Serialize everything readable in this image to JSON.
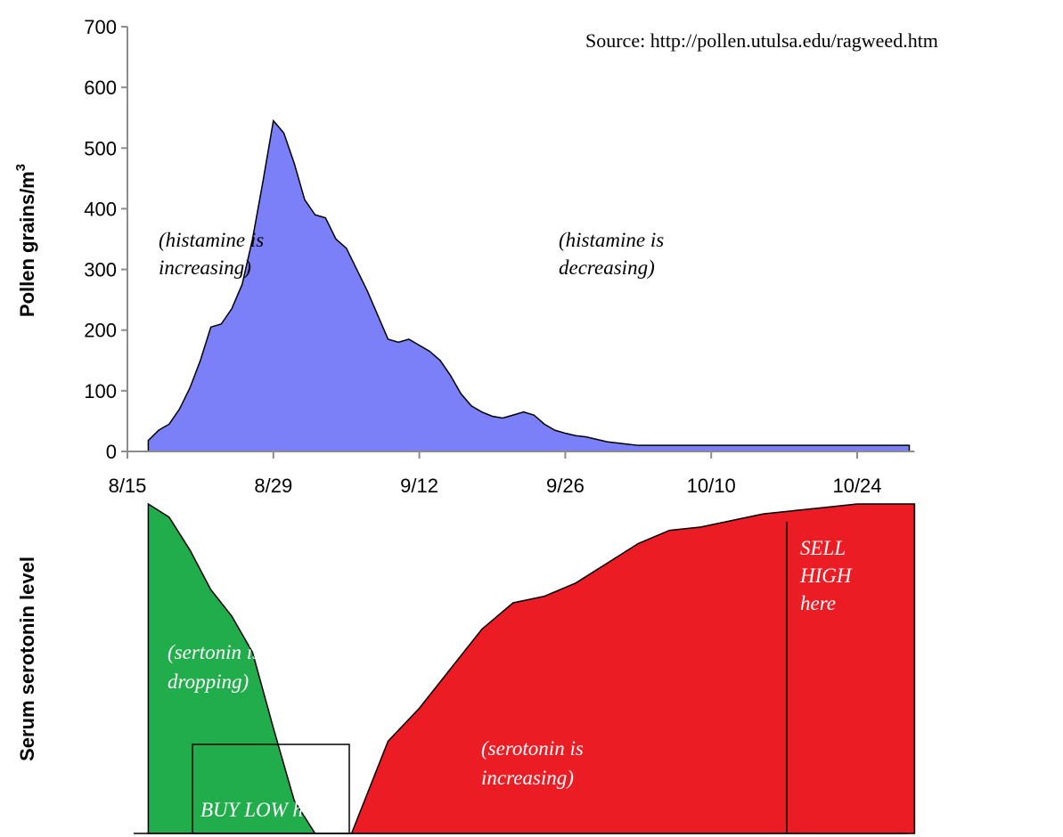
{
  "source": "Source: http://pollen.utulsa.edu/ragweed.htm",
  "colors": {
    "pollen": "#7b7ff8",
    "serotonin_drop": "#22ad4c",
    "serotonin_rise": "#ec1c24",
    "axis": "#8c8c8c"
  },
  "chart_data": [
    {
      "type": "area",
      "ylabel": "Pollen grains/m",
      "ylabel_sup": "3",
      "ylim": [
        0,
        700
      ],
      "yticks": [
        0,
        100,
        200,
        300,
        400,
        500,
        600,
        700
      ],
      "x_tick_labels": [
        "8/15",
        "8/29",
        "9/12",
        "9/26",
        "10/10",
        "10/24"
      ],
      "x_range_days": [
        0,
        75.5
      ],
      "grid": false,
      "series": [
        {
          "x_days": [
            2,
            3,
            4,
            5,
            6,
            7,
            8,
            9,
            10,
            11,
            12,
            13,
            14,
            15,
            16,
            17,
            18,
            19,
            20,
            21,
            22,
            23,
            24,
            25,
            26,
            27,
            28,
            29,
            30,
            31,
            32,
            33,
            34,
            35,
            36,
            37,
            38,
            39,
            40,
            41,
            42,
            43,
            44,
            45,
            46,
            47,
            48,
            49,
            50,
            51,
            52,
            53,
            54,
            55,
            56,
            57,
            58,
            59,
            60,
            61,
            62,
            63,
            64,
            65,
            66,
            67,
            68,
            69,
            70,
            71,
            72,
            73,
            74,
            75
          ],
          "values": [
            18,
            35,
            45,
            70,
            105,
            150,
            205,
            210,
            235,
            275,
            350,
            445,
            545,
            525,
            475,
            415,
            390,
            385,
            350,
            335,
            300,
            265,
            225,
            185,
            180,
            185,
            175,
            165,
            150,
            125,
            95,
            75,
            65,
            58,
            55,
            60,
            65,
            60,
            45,
            35,
            30,
            26,
            24,
            20,
            16,
            14,
            12,
            10,
            10,
            10,
            10,
            10,
            10,
            10,
            10,
            10,
            10,
            10,
            10,
            10,
            10,
            10,
            10,
            10,
            10,
            10,
            10,
            10,
            10,
            10,
            10,
            10,
            10,
            10
          ]
        }
      ],
      "annotations": [
        {
          "lines": [
            "(histamine is",
            "increasing)"
          ]
        },
        {
          "lines": [
            "(histamine is",
            "decreasing)"
          ]
        }
      ]
    },
    {
      "type": "area",
      "ylabel": "Serum serotonin level",
      "grid": false,
      "series": [
        {
          "segment": "dropping",
          "x_days": [
            2,
            4,
            6,
            8,
            10,
            12,
            14,
            16,
            18,
            21.5
          ],
          "values": [
            1.0,
            0.96,
            0.86,
            0.74,
            0.66,
            0.55,
            0.32,
            0.1,
            0.0,
            0.0
          ]
        },
        {
          "segment": "increasing",
          "x_days": [
            21.5,
            23,
            25,
            28,
            31,
            34,
            37,
            40,
            43,
            46,
            49,
            52,
            55,
            58,
            61,
            64,
            67,
            70,
            73,
            75.5
          ],
          "values": [
            0.0,
            0.12,
            0.28,
            0.38,
            0.5,
            0.62,
            0.7,
            0.72,
            0.76,
            0.82,
            0.88,
            0.92,
            0.93,
            0.95,
            0.97,
            0.98,
            0.99,
            1.0,
            1.0,
            1.0
          ]
        }
      ],
      "annotations": [
        {
          "lines": [
            "(sertonin is",
            "dropping)"
          ]
        },
        {
          "lines": [
            "(serotonin is",
            "increasing)"
          ]
        },
        {
          "lines": [
            "SELL",
            "HIGH",
            "here"
          ]
        },
        {
          "lines": [
            "BUY LOW here"
          ]
        }
      ]
    }
  ]
}
